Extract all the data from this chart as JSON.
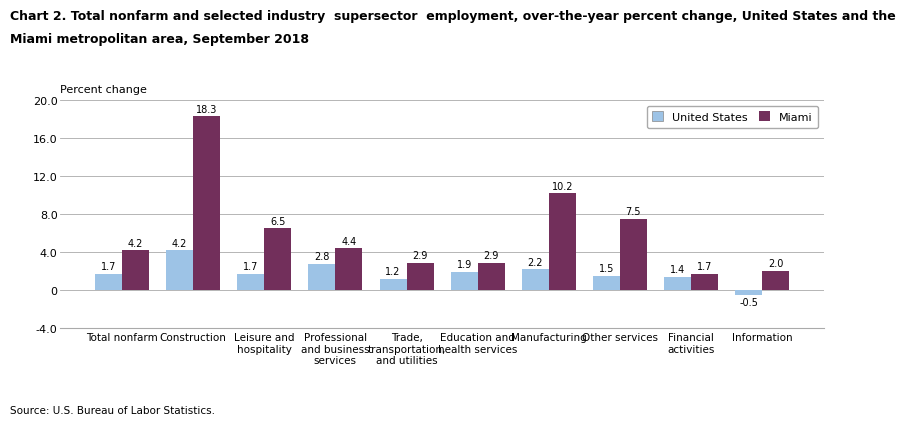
{
  "title_line1": "Chart 2. Total nonfarm and selected industry  supersector  employment, over-the-year percent change, United States and the",
  "title_line2": "Miami metropolitan area, September 2018",
  "ylabel": "Percent change",
  "source": "Source: U.S. Bureau of Labor Statistics.",
  "categories": [
    "Total nonfarm",
    "Construction",
    "Leisure and\nhospitality",
    "Professional\nand business\nservices",
    "Trade,\ntransportation,\nand utilities",
    "Education and\nhealth services",
    "Manufacturing",
    "Other services",
    "Financial\nactivities",
    "Information"
  ],
  "us_values": [
    1.7,
    4.2,
    1.7,
    2.8,
    1.2,
    1.9,
    2.2,
    1.5,
    1.4,
    -0.5
  ],
  "miami_values": [
    4.2,
    18.3,
    6.5,
    4.4,
    2.9,
    2.9,
    10.2,
    7.5,
    1.7,
    2.0
  ],
  "us_color": "#9DC3E6",
  "miami_color": "#722F5B",
  "ylim": [
    -4.0,
    20.0
  ],
  "yticks": [
    -4.0,
    0.0,
    4.0,
    8.0,
    12.0,
    16.0,
    20.0
  ],
  "ytick_labels": [
    "-4.0",
    "0",
    "4.0",
    "8.0",
    "12.0",
    "16.0",
    "20.0"
  ],
  "legend_us": "United States",
  "legend_miami": "Miami",
  "bar_width": 0.38,
  "label_fontsize": 7.0,
  "title_fontsize": 9.0,
  "axis_label_fontsize": 8.0,
  "tick_fontsize": 8.0,
  "source_fontsize": 7.5
}
